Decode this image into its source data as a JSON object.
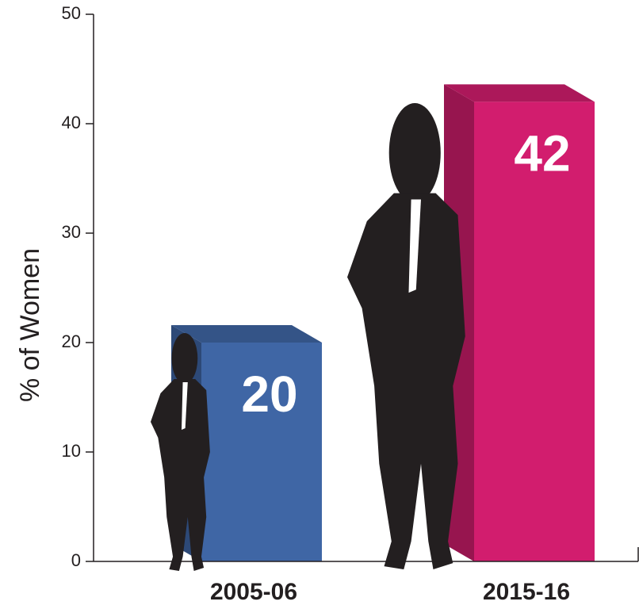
{
  "chart_data": {
    "type": "bar3d",
    "y_label": "% of Women",
    "categories": [
      "2005-06",
      "2015-16"
    ],
    "values": [
      20,
      42
    ],
    "colors": [
      "#3f66a5",
      "#d21d6e"
    ],
    "ylim": [
      0,
      50
    ],
    "yticks": [
      0,
      10,
      20,
      30,
      40,
      50
    ]
  }
}
